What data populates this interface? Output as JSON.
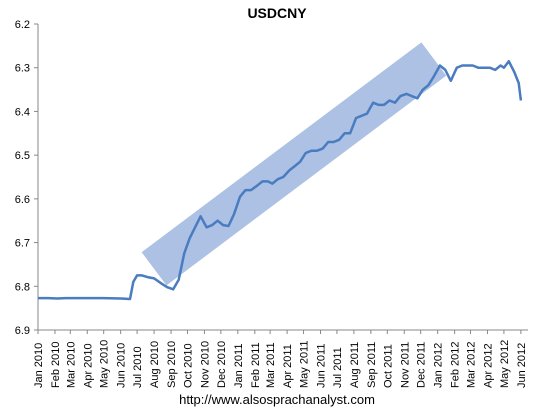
{
  "chart_data": {
    "type": "line",
    "title": "USDCNY",
    "xlabel": "",
    "ylabel": "",
    "y_axis": {
      "min": 6.2,
      "max": 6.9,
      "inverted": true,
      "ticks": [
        "6.2",
        "6.3",
        "6.4",
        "6.5",
        "6.6",
        "6.7",
        "6.8",
        "6.9"
      ]
    },
    "x_axis": {
      "ticks": [
        "Jan 2010",
        "Feb 2010",
        "Mar 2010",
        "Apr 2010",
        "May 2010",
        "Jun 2010",
        "Jul 2010",
        "Aug 2010",
        "Sep 2010",
        "Oct 2010",
        "Nov 2010",
        "Dec 2010",
        "Jan 2011",
        "Feb 2011",
        "Mar 2011",
        "Apr 2011",
        "May 2011",
        "Jun 2011",
        "Jul 2011",
        "Aug 2011",
        "Sep 2011",
        "Oct 2011",
        "Nov 2011",
        "Dec 2011",
        "Jan 2012",
        "Feb 2012",
        "Mar 2012",
        "Apr 2012",
        "May 2012",
        "Jun 2012"
      ]
    },
    "grid": false,
    "legend": "none",
    "colors": {
      "line": "#4a7cc0",
      "channel": "#9db6df"
    },
    "series": [
      {
        "x": [
          "2010-01-01",
          "2010-01-20",
          "2010-02-05",
          "2010-02-20",
          "2010-03-10",
          "2010-04-01",
          "2010-05-01",
          "2010-06-01",
          "2010-06-18",
          "2010-06-24",
          "2010-07-01",
          "2010-07-10",
          "2010-07-20",
          "2010-08-01",
          "2010-08-15",
          "2010-08-25",
          "2010-09-05",
          "2010-09-15",
          "2010-09-25",
          "2010-10-05",
          "2010-10-15",
          "2010-10-25",
          "2010-11-05",
          "2010-11-15",
          "2010-11-25",
          "2010-12-05",
          "2010-12-15",
          "2010-12-25",
          "2011-01-05",
          "2011-01-15",
          "2011-01-25",
          "2011-02-05",
          "2011-02-15",
          "2011-02-25",
          "2011-03-05",
          "2011-03-15",
          "2011-03-25",
          "2011-04-05",
          "2011-04-15",
          "2011-04-25",
          "2011-05-05",
          "2011-05-15",
          "2011-05-25",
          "2011-06-05",
          "2011-06-15",
          "2011-06-25",
          "2011-07-05",
          "2011-07-15",
          "2011-07-25",
          "2011-08-05",
          "2011-08-15",
          "2011-08-25",
          "2011-09-05",
          "2011-09-15",
          "2011-09-25",
          "2011-10-05",
          "2011-10-15",
          "2011-10-25",
          "2011-11-05",
          "2011-11-15",
          "2011-11-25",
          "2011-12-05",
          "2011-12-15",
          "2011-12-25",
          "2012-01-05",
          "2012-01-15",
          "2012-01-25",
          "2012-02-05",
          "2012-02-15",
          "2012-02-25",
          "2012-03-05",
          "2012-03-15",
          "2012-03-25",
          "2012-04-05",
          "2012-04-15",
          "2012-04-25",
          "2012-05-01",
          "2012-05-10",
          "2012-05-20",
          "2012-05-28",
          "2012-06-01"
        ],
        "values": [
          6.827,
          6.827,
          6.828,
          6.827,
          6.827,
          6.827,
          6.827,
          6.828,
          6.829,
          6.79,
          6.775,
          6.775,
          6.779,
          6.782,
          6.794,
          6.802,
          6.807,
          6.785,
          6.725,
          6.69,
          6.665,
          6.64,
          6.665,
          6.66,
          6.65,
          6.66,
          6.662,
          6.635,
          6.595,
          6.58,
          6.58,
          6.57,
          6.56,
          6.56,
          6.565,
          6.555,
          6.55,
          6.535,
          6.525,
          6.515,
          6.495,
          6.49,
          6.49,
          6.485,
          6.47,
          6.47,
          6.465,
          6.45,
          6.45,
          6.415,
          6.41,
          6.405,
          6.38,
          6.385,
          6.385,
          6.375,
          6.38,
          6.365,
          6.36,
          6.365,
          6.37,
          6.35,
          6.34,
          6.32,
          6.295,
          6.305,
          6.33,
          6.3,
          6.295,
          6.295,
          6.295,
          6.3,
          6.3,
          6.3,
          6.305,
          6.295,
          6.3,
          6.285,
          6.31,
          6.335,
          6.375
        ]
      }
    ],
    "annotation_channel": {
      "lower_left": [
        "2010-08-01",
        6.76
      ],
      "upper_right": [
        "2011-12-25",
        6.28
      ],
      "width_y": 0.095
    }
  },
  "footer": {
    "url": "http://www.alsosprachanalyst.com"
  }
}
